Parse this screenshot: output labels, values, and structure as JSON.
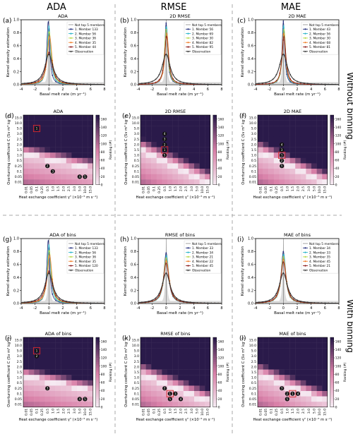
{
  "column_headers": [
    "ADA",
    "RMSE",
    "MAE"
  ],
  "row_headers": [
    "Without binning",
    "With binning"
  ],
  "colors": {
    "not_top": "#b0b0b0",
    "member1": "#1f2a7a",
    "member2": "#2bb5c9",
    "member3": "#b8d94a",
    "member4": "#f07f2b",
    "member5": "#8b1a1a",
    "observation": "#333333",
    "heat_low": "#f7f0f6",
    "heat_mid": "#d980a8",
    "heat_high": "#2a1a4a",
    "frame_dash": "#aaaaaa"
  },
  "chart_data": [
    {
      "type": "line",
      "letter": "(a)",
      "title": "ADA",
      "xlabel": "Basal melt rate (m yr⁻¹)",
      "ylabel": "Kernel density estimation",
      "xlim": [
        -4,
        8
      ],
      "ylim": [
        0,
        1.0
      ],
      "xticks": [
        -4,
        -2,
        0,
        2,
        4,
        6,
        8
      ],
      "yticks": [
        0.0,
        0.2,
        0.4,
        0.6,
        0.8,
        1.0
      ],
      "legend_loc": "upper-right",
      "legend_header": "Not top 5 members",
      "series": [
        {
          "name": "1. Member 133",
          "mu": -0.1,
          "gamma": 0.25,
          "peak": 0.98
        },
        {
          "name": "2. Member 56",
          "mu": 0.0,
          "gamma": 0.3,
          "peak": 0.9
        },
        {
          "name": "3. Member 36",
          "mu": 0.05,
          "gamma": 0.35,
          "peak": 0.82
        },
        {
          "name": "4. Member 35",
          "mu": 0.1,
          "gamma": 0.4,
          "peak": 0.75
        },
        {
          "name": "5. Member 44",
          "mu": 0.0,
          "gamma": 0.55,
          "peak": 0.5
        }
      ],
      "observation": {
        "name": "Observation",
        "mu": 0.0,
        "gamma": 0.7,
        "peak": 0.47
      }
    },
    {
      "type": "line",
      "letter": "(b)",
      "title": "2D RMSE",
      "xlabel": "Basal melt rate (m yr⁻¹)",
      "ylabel": "Kernel density estimation",
      "xlim": [
        -4,
        8
      ],
      "ylim": [
        0,
        1.0
      ],
      "xticks": [
        -4,
        -2,
        0,
        2,
        4,
        6,
        8
      ],
      "yticks": [
        0.0,
        0.2,
        0.4,
        0.6,
        0.8,
        1.0
      ],
      "legend_loc": "upper-right",
      "legend_header": "Not top 5 members",
      "series": [
        {
          "name": "1. Member 56",
          "mu": 0.0,
          "gamma": 0.25,
          "peak": 0.95
        },
        {
          "name": "2. Member 69",
          "mu": 0.05,
          "gamma": 0.28,
          "peak": 0.9
        },
        {
          "name": "3. Member 30",
          "mu": 0.0,
          "gamma": 0.3,
          "peak": 0.85
        },
        {
          "name": "4. Member 82",
          "mu": 0.1,
          "gamma": 0.32,
          "peak": 0.8
        },
        {
          "name": "5. Member 95",
          "mu": 0.05,
          "gamma": 0.35,
          "peak": 0.75
        }
      ],
      "observation": {
        "name": "Observation",
        "mu": 0.0,
        "gamma": 0.7,
        "peak": 0.47
      }
    },
    {
      "type": "line",
      "letter": "(c)",
      "title": "2D MAE",
      "xlabel": "Basal melt rate (m yr⁻¹)",
      "ylabel": "Kernel density estimation",
      "xlim": [
        -4,
        8
      ],
      "ylim": [
        0,
        1.0
      ],
      "xticks": [
        -4,
        -2,
        0,
        2,
        4,
        6,
        8
      ],
      "yticks": [
        0.0,
        0.2,
        0.4,
        0.6,
        0.8,
        1.0
      ],
      "legend_loc": "upper-right",
      "legend_header": "Not top 5 members",
      "series": [
        {
          "name": "1. Member 43",
          "mu": 0.0,
          "gamma": 0.22,
          "peak": 0.98
        },
        {
          "name": "2. Member 56",
          "mu": 0.05,
          "gamma": 0.25,
          "peak": 0.92
        },
        {
          "name": "3. Member 30",
          "mu": 0.1,
          "gamma": 0.28,
          "peak": 0.86
        },
        {
          "name": "4. Member 68",
          "mu": 0.05,
          "gamma": 0.3,
          "peak": 0.8
        },
        {
          "name": "5. Member 81",
          "mu": 0.1,
          "gamma": 0.33,
          "peak": 0.75
        }
      ],
      "observation": {
        "name": "Observation",
        "mu": 0.0,
        "gamma": 0.7,
        "peak": 0.47
      }
    },
    {
      "type": "heatmap",
      "letter": "(d)",
      "title": "ADA",
      "xlabel": "Heat exchange coefficient γᵀ (×10⁻⁵ m s⁻¹)",
      "ylabel": "Overturning coefficient C (Sv m³ kg⁻¹)",
      "x_categories": [
        "0.01",
        "0.05",
        "0.1",
        "0.25",
        "0.5",
        "1.0",
        "1.5",
        "2.0",
        "2.5",
        "3.0",
        "5.0",
        "10.0",
        "15.0"
      ],
      "y_categories": [
        "15.0",
        "10.0",
        "5.0",
        "3.0",
        "2.5",
        "2.0",
        "1.5",
        "1.0",
        "0.5",
        "0.25",
        "0.1",
        "0.05",
        "0.01"
      ],
      "colorbar_label": "Ranking (#)",
      "colorbar_range": [
        0,
        170
      ],
      "colorbar_ticks": [
        0,
        20,
        40,
        60,
        80,
        100,
        120,
        140,
        160
      ],
      "ranking_field": "diag_band",
      "band": {
        "a": 0.5,
        "b": 2.35,
        "w": 0.15
      },
      "top_marks": [
        {
          "rank": 1,
          "x": "0.1",
          "y": "5.0",
          "boxed": true
        },
        {
          "rank": 2,
          "x": "0.5",
          "y": "0.25",
          "boxed": false
        },
        {
          "rank": 3,
          "x": "1.0",
          "y": "0.1",
          "boxed": false
        },
        {
          "rank": 4,
          "x": "5.0",
          "y": "0.05",
          "boxed": false
        },
        {
          "rank": 5,
          "x": "10.0",
          "y": "0.05",
          "boxed": false
        }
      ]
    },
    {
      "type": "heatmap",
      "letter": "(e)",
      "title": "2D RMSE",
      "xlabel": "Heat exchange coefficient γᵀ (×10⁻⁵ m s⁻¹)",
      "ylabel": "Overturning coefficient C (Sv m³ kg⁻¹)",
      "x_categories": [
        "0.01",
        "0.05",
        "0.1",
        "0.25",
        "0.5",
        "1.0",
        "1.5",
        "2.0",
        "2.5",
        "3.0",
        "5.0",
        "10.0",
        "15.0"
      ],
      "y_categories": [
        "15.0",
        "10.0",
        "5.0",
        "3.0",
        "2.5",
        "2.0",
        "1.5",
        "1.0",
        "0.5",
        "0.25",
        "0.1",
        "0.05",
        "0.01"
      ],
      "colorbar_label": "Ranking (#)",
      "colorbar_range": [
        0,
        170
      ],
      "colorbar_ticks": [
        0,
        20,
        40,
        60,
        80,
        100,
        120,
        140,
        160
      ],
      "ranking_field": "diag_band",
      "band": {
        "a": 1.0,
        "b": 2.1,
        "w": 0.18
      },
      "top_marks": [
        {
          "rank": 1,
          "x": "0.5",
          "y": "1.5",
          "boxed": true
        },
        {
          "rank": 2,
          "x": "0.5",
          "y": "2.0",
          "boxed": false
        },
        {
          "rank": 3,
          "x": "0.5",
          "y": "2.5",
          "boxed": false
        },
        {
          "rank": 4,
          "x": "0.5",
          "y": "3.0",
          "boxed": false
        },
        {
          "rank": 5,
          "x": "0.5",
          "y": "1.0",
          "boxed": false
        }
      ]
    },
    {
      "type": "heatmap",
      "letter": "(f)",
      "title": "2D MAE",
      "xlabel": "Heat exchange coefficient γᵀ (×10⁻⁵ m s⁻¹)",
      "ylabel": "Overturning coefficient C (Sv m³ kg⁻¹)",
      "x_categories": [
        "0.01",
        "0.05",
        "0.1",
        "0.25",
        "0.5",
        "1.0",
        "1.5",
        "2.0",
        "2.5",
        "3.0",
        "5.0",
        "10.0",
        "15.0"
      ],
      "y_categories": [
        "15.0",
        "10.0",
        "5.0",
        "3.0",
        "2.5",
        "2.0",
        "1.5",
        "1.0",
        "0.5",
        "0.25",
        "0.1",
        "0.05",
        "0.01"
      ],
      "colorbar_label": "Ranking (#)",
      "colorbar_range": [
        0,
        170
      ],
      "colorbar_ticks": [
        0,
        20,
        40,
        60,
        80,
        100,
        120,
        140,
        160
      ],
      "ranking_field": "diag_band",
      "band": {
        "a": 1.0,
        "b": 2.2,
        "w": 0.18
      },
      "top_marks": [
        {
          "rank": 1,
          "x": "0.5",
          "y": "1.0",
          "boxed": true
        },
        {
          "rank": 2,
          "x": "0.5",
          "y": "0.5",
          "boxed": false
        },
        {
          "rank": 3,
          "x": "0.5",
          "y": "1.5",
          "boxed": false
        },
        {
          "rank": 4,
          "x": "0.5",
          "y": "2.0",
          "boxed": false
        },
        {
          "rank": 5,
          "x": "0.5",
          "y": "0.25",
          "boxed": false
        }
      ]
    },
    {
      "type": "line",
      "letter": "(g)",
      "title": "ADA of bins",
      "xlabel": "Basal melt rate (m yr⁻¹)",
      "ylabel": "Kernel density estimation",
      "xlim": [
        -4,
        8
      ],
      "ylim": [
        0,
        1.0
      ],
      "xticks": [
        -4,
        -2,
        0,
        2,
        4,
        6,
        8
      ],
      "yticks": [
        0.0,
        0.2,
        0.4,
        0.6,
        0.8,
        1.0
      ],
      "legend_loc": "upper-right",
      "legend_header": "Not top 5 members",
      "series": [
        {
          "name": "1. Member 133",
          "mu": -0.1,
          "gamma": 0.25,
          "peak": 0.98
        },
        {
          "name": "2. Member 56",
          "mu": 0.0,
          "gamma": 0.3,
          "peak": 0.9
        },
        {
          "name": "3. Member 36",
          "mu": 0.05,
          "gamma": 0.35,
          "peak": 0.82
        },
        {
          "name": "4. Member 35",
          "mu": 0.1,
          "gamma": 0.4,
          "peak": 0.75
        },
        {
          "name": "5. Member 120",
          "mu": 0.0,
          "gamma": 0.55,
          "peak": 0.5
        }
      ],
      "observation": {
        "name": "Observation",
        "mu": 0.0,
        "gamma": 0.7,
        "peak": 0.47
      }
    },
    {
      "type": "line",
      "letter": "(h)",
      "title": "RMSE of bins",
      "xlabel": "Basal melt rate (m yr⁻¹)",
      "ylabel": "Kernel density estimation",
      "xlim": [
        -4,
        8
      ],
      "ylim": [
        0,
        1.0
      ],
      "xticks": [
        -4,
        -2,
        0,
        2,
        4,
        6,
        8
      ],
      "yticks": [
        0.0,
        0.2,
        0.4,
        0.6,
        0.8,
        1.0
      ],
      "legend_loc": "upper-right",
      "legend_header": "Not top 5 members",
      "series": [
        {
          "name": "1. Member 33",
          "mu": 0.0,
          "gamma": 0.4,
          "peak": 0.78
        },
        {
          "name": "2. Member 34",
          "mu": 0.05,
          "gamma": 0.42,
          "peak": 0.74
        },
        {
          "name": "3. Member 21",
          "mu": 0.0,
          "gamma": 0.45,
          "peak": 0.7
        },
        {
          "name": "4. Member 22",
          "mu": 0.05,
          "gamma": 0.48,
          "peak": 0.66
        },
        {
          "name": "5. Member 45",
          "mu": 0.0,
          "gamma": 0.5,
          "peak": 0.62
        }
      ],
      "observation": {
        "name": "Observation",
        "mu": 0.0,
        "gamma": 0.7,
        "peak": 0.47
      }
    },
    {
      "type": "line",
      "letter": "(i)",
      "title": "MAE of bins",
      "xlabel": "Basal melt rate (m yr⁻¹)",
      "ylabel": "Kernel density estimation",
      "xlim": [
        -4,
        8
      ],
      "ylim": [
        0,
        1.0
      ],
      "xticks": [
        -4,
        -2,
        0,
        2,
        4,
        6,
        8
      ],
      "yticks": [
        0.0,
        0.2,
        0.4,
        0.6,
        0.8,
        1.0
      ],
      "legend_loc": "upper-right",
      "legend_header": "Not top 5 members",
      "series": [
        {
          "name": "1. Member 34",
          "mu": 0.0,
          "gamma": 0.38,
          "peak": 0.8
        },
        {
          "name": "2. Member 33",
          "mu": 0.05,
          "gamma": 0.4,
          "peak": 0.76
        },
        {
          "name": "3. Member 35",
          "mu": 0.0,
          "gamma": 0.42,
          "peak": 0.72
        },
        {
          "name": "4. Member 45",
          "mu": 0.05,
          "gamma": 0.45,
          "peak": 0.68
        },
        {
          "name": "5. Member 21",
          "mu": 0.0,
          "gamma": 0.48,
          "peak": 0.64
        }
      ],
      "observation": {
        "name": "Observation",
        "mu": 0.0,
        "gamma": 0.7,
        "peak": 0.47
      }
    },
    {
      "type": "heatmap",
      "letter": "(j)",
      "title": "ADA of bins",
      "xlabel": "Heat exchange coefficient γᵀ (×10⁻⁵ m s⁻¹)",
      "ylabel": "Overturning coefficient C (Sv m³ kg⁻¹)",
      "x_categories": [
        "0.01",
        "0.05",
        "0.1",
        "0.25",
        "0.5",
        "1.0",
        "1.5",
        "2.0",
        "2.5",
        "3.0",
        "5.0",
        "10.0",
        "15.0"
      ],
      "y_categories": [
        "15.0",
        "10.0",
        "5.0",
        "3.0",
        "2.5",
        "2.0",
        "1.5",
        "1.0",
        "0.5",
        "0.25",
        "0.1",
        "0.05",
        "0.01"
      ],
      "colorbar_label": "Ranking (#)",
      "colorbar_range": [
        0,
        170
      ],
      "colorbar_ticks": [
        0,
        20,
        40,
        60,
        80,
        100,
        120,
        140,
        160
      ],
      "ranking_field": "diag_band",
      "band": {
        "a": 0.5,
        "b": 2.35,
        "w": 0.15
      },
      "top_marks": [
        {
          "rank": 1,
          "x": "0.1",
          "y": "5.0",
          "boxed": true
        },
        {
          "rank": 2,
          "x": "0.1",
          "y": "3.0",
          "boxed": false
        },
        {
          "rank": 3,
          "x": "0.5",
          "y": "0.25",
          "boxed": false
        },
        {
          "rank": 4,
          "x": "5.0",
          "y": "0.05",
          "boxed": false
        },
        {
          "rank": 5,
          "x": "10.0",
          "y": "0.05",
          "boxed": false
        }
      ]
    },
    {
      "type": "heatmap",
      "letter": "(k)",
      "title": "RMSE of bins",
      "xlabel": "Heat exchange coefficient γᵀ (×10⁻⁵ m s⁻¹)",
      "ylabel": "Overturning coefficient C (Sv m³ kg⁻¹)",
      "x_categories": [
        "0.01",
        "0.05",
        "0.1",
        "0.25",
        "0.5",
        "1.0",
        "1.5",
        "2.0",
        "2.5",
        "3.0",
        "5.0",
        "10.0",
        "15.0"
      ],
      "y_categories": [
        "15.0",
        "10.0",
        "5.0",
        "3.0",
        "2.5",
        "2.0",
        "1.5",
        "1.0",
        "0.5",
        "0.25",
        "0.1",
        "0.05",
        "0.01"
      ],
      "colorbar_label": "Ranking (#)",
      "colorbar_range": [
        0,
        170
      ],
      "colorbar_ticks": [
        0,
        20,
        40,
        60,
        80,
        100,
        120,
        140,
        160
      ],
      "ranking_field": "diag_band",
      "band": {
        "a": 0.9,
        "b": 2.2,
        "w": 0.18
      },
      "top_marks": [
        {
          "rank": 1,
          "x": "1.0",
          "y": "0.1",
          "boxed": true
        },
        {
          "rank": 2,
          "x": "0.5",
          "y": "0.25",
          "boxed": false
        },
        {
          "rank": 3,
          "x": "1.5",
          "y": "0.1",
          "boxed": false
        },
        {
          "rank": 4,
          "x": "2.0",
          "y": "0.05",
          "boxed": false
        },
        {
          "rank": 5,
          "x": "1.0",
          "y": "0.05",
          "boxed": false
        }
      ]
    },
    {
      "type": "heatmap",
      "letter": "(l)",
      "title": "MAE of bins",
      "xlabel": "Heat exchange coefficient γᵀ (×10⁻⁵ m s⁻¹)",
      "ylabel": "Overturning coefficient C (Sv m³ kg⁻¹)",
      "x_categories": [
        "0.01",
        "0.05",
        "0.1",
        "0.25",
        "0.5",
        "1.0",
        "1.5",
        "2.0",
        "2.5",
        "3.0",
        "5.0",
        "10.0",
        "15.0"
      ],
      "y_categories": [
        "15.0",
        "10.0",
        "5.0",
        "3.0",
        "2.5",
        "2.0",
        "1.5",
        "1.0",
        "0.5",
        "0.25",
        "0.1",
        "0.05",
        "0.01"
      ],
      "colorbar_label": "Ranking (#)",
      "colorbar_range": [
        0,
        170
      ],
      "colorbar_ticks": [
        0,
        20,
        40,
        60,
        80,
        100,
        120,
        140,
        160
      ],
      "ranking_field": "diag_band",
      "band": {
        "a": 0.9,
        "b": 2.2,
        "w": 0.18
      },
      "top_marks": [
        {
          "rank": 1,
          "x": "1.5",
          "y": "0.1",
          "boxed": true
        },
        {
          "rank": 2,
          "x": "1.0",
          "y": "0.1",
          "boxed": false
        },
        {
          "rank": 3,
          "x": "0.5",
          "y": "0.25",
          "boxed": false
        },
        {
          "rank": 4,
          "x": "2.0",
          "y": "0.1",
          "boxed": false
        },
        {
          "rank": 5,
          "x": "1.0",
          "y": "0.05",
          "boxed": false
        }
      ]
    }
  ]
}
